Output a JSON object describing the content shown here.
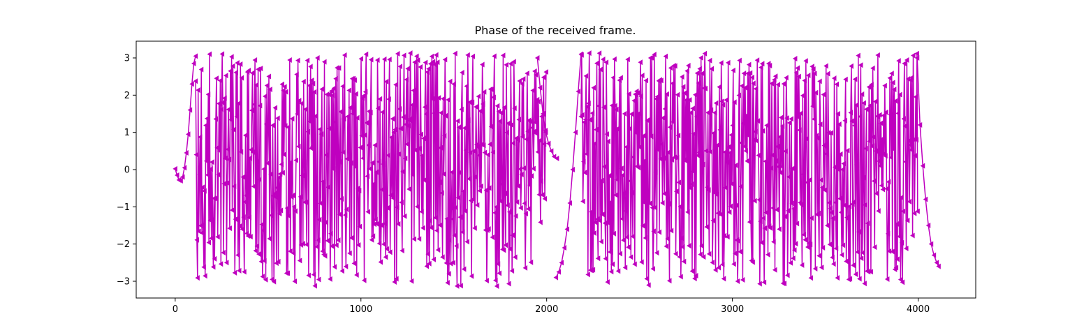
{
  "chart_data": {
    "type": "line",
    "title": "Phase of the received frame.",
    "xlabel": "",
    "ylabel": "",
    "xlim": [
      -210,
      4310
    ],
    "ylim": [
      -3.45,
      3.45
    ],
    "x_ticks": [
      0,
      1000,
      2000,
      3000,
      4000
    ],
    "y_ticks": [
      3,
      2,
      1,
      0,
      -1,
      -2,
      -3
    ],
    "x_tick_labels": [
      "0",
      "1000",
      "2000",
      "3000",
      "4000"
    ],
    "y_tick_labels": [
      "3",
      "2",
      "1",
      "0",
      "−1",
      "−2",
      "−3"
    ],
    "grid": false,
    "legend": "none",
    "marker": "triangle-left",
    "color": "#bf00bf",
    "series": [
      {
        "segments": [
          {
            "kind": "smooth",
            "x": [
              0,
              10,
              20,
              30,
              40,
              50,
              60,
              70,
              80,
              90,
              100,
              110
            ],
            "y": [
              0.02,
              -0.15,
              -0.28,
              -0.3,
              -0.2,
              0.05,
              0.45,
              0.95,
              1.6,
              2.3,
              2.85,
              3.05
            ]
          },
          {
            "kind": "wrap",
            "x_start": 110,
            "x_end": 2000,
            "period": 17,
            "amplitude": 3.14
          },
          {
            "kind": "smooth",
            "x": [
              1950,
              1965,
              1980,
              1995,
              2010,
              2025,
              2040,
              2055
            ],
            "y": [
              3.0,
              2.2,
              1.5,
              1.0,
              0.7,
              0.5,
              0.35,
              0.3
            ]
          },
          {
            "kind": "smooth",
            "x": [
              2050,
              2065,
              2080,
              2095,
              2110,
              2125,
              2140,
              2155,
              2170,
              2185
            ],
            "y": [
              -2.9,
              -2.75,
              -2.5,
              -2.1,
              -1.6,
              -0.9,
              0.0,
              1.0,
              2.1,
              3.1
            ]
          },
          {
            "kind": "wrap",
            "x_start": 2185,
            "x_end": 4000,
            "period": 17,
            "amplitude": 3.14
          },
          {
            "kind": "smooth",
            "x": [
              3995,
              4010,
              4025,
              4040,
              4055,
              4070,
              4085,
              4100,
              4110
            ],
            "y": [
              3.0,
              1.2,
              0.1,
              -0.8,
              -1.5,
              -2.0,
              -2.3,
              -2.5,
              -2.6
            ]
          }
        ]
      }
    ]
  }
}
